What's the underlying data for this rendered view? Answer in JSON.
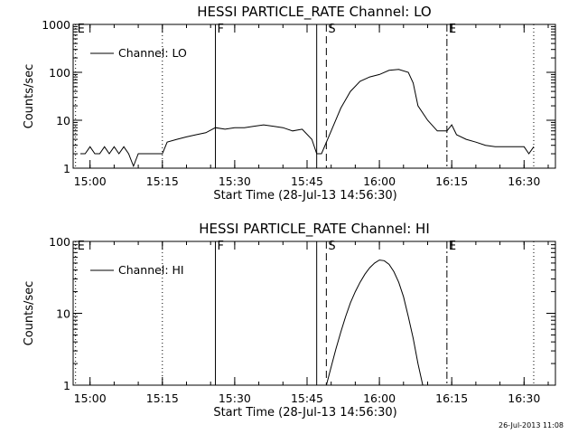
{
  "footer_timestamp": "26-Jul-2013 11:08",
  "chart_data": [
    {
      "type": "line",
      "title": "HESSI PARTICLE_RATE Channel: LO",
      "xlabel": "Start Time (28-Jul-13 14:56:30)",
      "ylabel": "Counts/sec",
      "yscale": "log",
      "ylim": [
        1,
        1000
      ],
      "xlim": [
        "14:56:30",
        "16:36:30"
      ],
      "x_ticks": [
        "15:00",
        "15:15",
        "15:30",
        "15:45",
        "16:00",
        "16:15",
        "16:30"
      ],
      "y_ticks": [
        "1",
        "10",
        "100",
        "1000"
      ],
      "legend": {
        "position": "top-left",
        "label": "Channel: LO"
      },
      "grid": false,
      "markers": [
        {
          "label": "E",
          "time": "14:57",
          "style": "dotted"
        },
        {
          "label": "",
          "time": "15:15",
          "style": "dotted"
        },
        {
          "label": "F",
          "time": "15:26",
          "style": "solid"
        },
        {
          "label": "",
          "time": "15:47",
          "style": "solid"
        },
        {
          "label": "S",
          "time": "15:49",
          "style": "dashed"
        },
        {
          "label": "E",
          "time": "16:14",
          "style": "dashdot"
        },
        {
          "label": "",
          "time": "16:32",
          "style": "dotted"
        }
      ],
      "series": [
        {
          "name": "Channel: LO",
          "x": [
            "14:58",
            "14:59",
            "15:00",
            "15:01",
            "15:02",
            "15:03",
            "15:04",
            "15:05",
            "15:06",
            "15:07",
            "15:08",
            "15:09",
            "15:10",
            "15:11",
            "15:12",
            "15:13",
            "15:14",
            "15:15",
            "15:16",
            "15:18",
            "15:20",
            "15:22",
            "15:24",
            "15:26",
            "15:28",
            "15:30",
            "15:32",
            "15:34",
            "15:36",
            "15:38",
            "15:40",
            "15:42",
            "15:44",
            "15:46",
            "15:47",
            "15:48",
            "15:50",
            "15:52",
            "15:54",
            "15:56",
            "15:58",
            "16:00",
            "16:02",
            "16:04",
            "16:06",
            "16:07",
            "16:08",
            "16:10",
            "16:12",
            "16:14",
            "16:15",
            "16:16",
            "16:18",
            "16:20",
            "16:22",
            "16:24",
            "16:26",
            "16:28",
            "16:30",
            "16:31",
            "16:32"
          ],
          "y": [
            2,
            2,
            2.8,
            2,
            2,
            2.8,
            2,
            2.8,
            2,
            2.8,
            2,
            1.1,
            2,
            2,
            2,
            2,
            2,
            2,
            3.5,
            4,
            4.5,
            5,
            5.5,
            7,
            6.5,
            7,
            7,
            7.5,
            8,
            7.5,
            7,
            6,
            6.5,
            4,
            2,
            2,
            6,
            18,
            40,
            65,
            80,
            90,
            110,
            115,
            100,
            60,
            20,
            10,
            6,
            6,
            8,
            5,
            4,
            3.5,
            3,
            2.8,
            2.8,
            2.8,
            2.8,
            2,
            2.8
          ]
        }
      ]
    },
    {
      "type": "line",
      "title": "HESSI PARTICLE_RATE Channel: HI",
      "xlabel": "Start Time (28-Jul-13 14:56:30)",
      "ylabel": "Counts/sec",
      "yscale": "log",
      "ylim": [
        1,
        100
      ],
      "xlim": [
        "14:56:30",
        "16:36:30"
      ],
      "x_ticks": [
        "15:00",
        "15:15",
        "15:30",
        "15:45",
        "16:00",
        "16:15",
        "16:30"
      ],
      "y_ticks": [
        "1",
        "10",
        "100"
      ],
      "legend": {
        "position": "top-left",
        "label": "Channel: HI"
      },
      "grid": false,
      "markers": [
        {
          "label": "E",
          "time": "14:57",
          "style": "dotted"
        },
        {
          "label": "",
          "time": "15:15",
          "style": "dotted"
        },
        {
          "label": "F",
          "time": "15:26",
          "style": "solid"
        },
        {
          "label": "",
          "time": "15:47",
          "style": "solid"
        },
        {
          "label": "S",
          "time": "15:49",
          "style": "dashed"
        },
        {
          "label": "E",
          "time": "16:14",
          "style": "dashdot"
        },
        {
          "label": "",
          "time": "16:32",
          "style": "dotted"
        }
      ],
      "series": [
        {
          "name": "Channel: HI",
          "x": [
            "15:49",
            "15:50",
            "15:51",
            "15:52",
            "15:53",
            "15:54",
            "15:55",
            "15:56",
            "15:57",
            "15:58",
            "15:59",
            "16:00",
            "16:01",
            "16:02",
            "16:03",
            "16:04",
            "16:05",
            "16:06",
            "16:07",
            "16:08",
            "16:09"
          ],
          "y": [
            1,
            1.8,
            3.2,
            5.5,
            9,
            14,
            20,
            27,
            35,
            43,
            50,
            55,
            54,
            48,
            38,
            27,
            17,
            9,
            4.5,
            2,
            1
          ]
        }
      ]
    }
  ]
}
